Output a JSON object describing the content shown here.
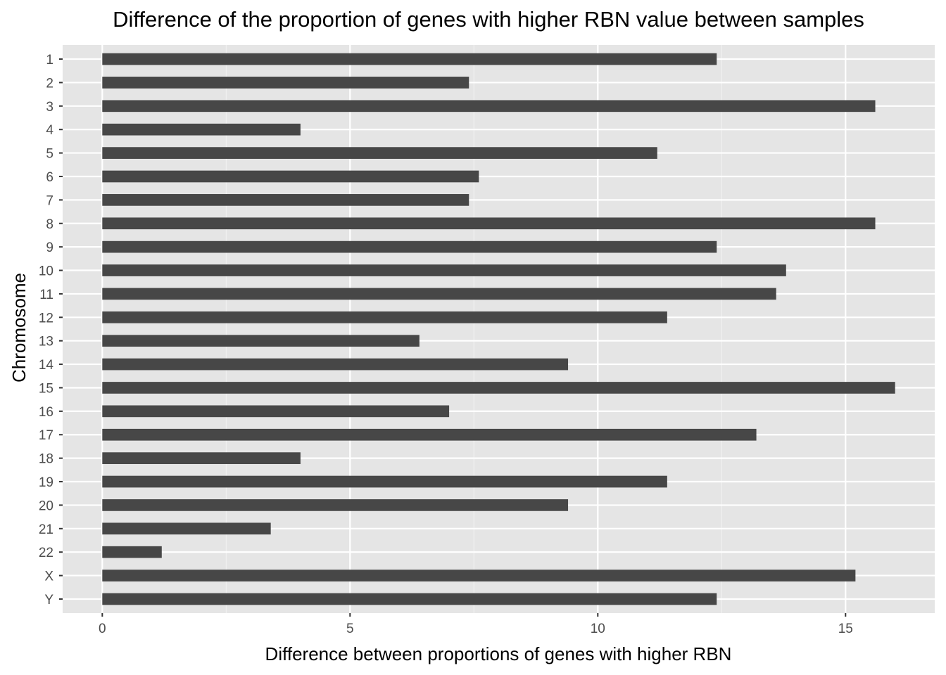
{
  "chart_data": {
    "type": "bar",
    "orientation": "horizontal",
    "title": "Difference of the proportion of genes with higher RBN value between samples",
    "xlabel": "Difference between proportions of genes with higher RBN",
    "ylabel": "Chromosome",
    "categories": [
      "1",
      "2",
      "3",
      "4",
      "5",
      "6",
      "7",
      "8",
      "9",
      "10",
      "11",
      "12",
      "13",
      "14",
      "15",
      "16",
      "17",
      "18",
      "19",
      "20",
      "21",
      "22",
      "X",
      "Y"
    ],
    "values": [
      12.4,
      7.4,
      15.6,
      4.0,
      11.2,
      7.6,
      7.4,
      15.6,
      12.4,
      13.8,
      13.6,
      11.4,
      6.4,
      9.4,
      16.0,
      7.0,
      13.2,
      4.0,
      11.4,
      9.4,
      3.4,
      1.2,
      15.2,
      12.4
    ],
    "x_ticks": [
      0,
      5,
      10,
      15
    ],
    "x_tick_labels": [
      "0",
      "5",
      "10",
      "15"
    ],
    "xlim": [
      -0.8,
      16.8
    ],
    "grid": true,
    "legend": "none",
    "colors": {
      "bar": "#474747",
      "panel_background": "#e5e5e5",
      "grid_major": "#ffffff",
      "grid_minor": "#f2f2f2",
      "tick_text": "#4d4d4d",
      "tick_mark": "#333333"
    }
  }
}
